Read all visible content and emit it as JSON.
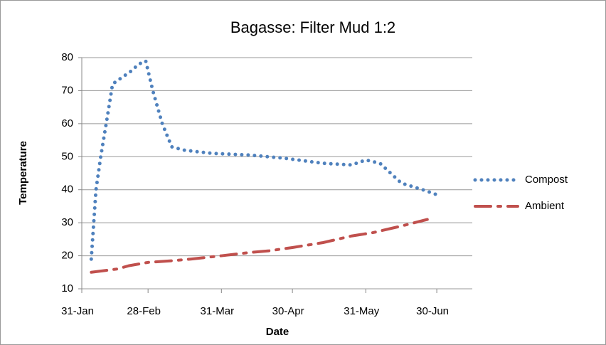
{
  "chart_data": {
    "type": "line",
    "title": "Bagasse: Filter Mud 1:2",
    "xlabel": "Date",
    "ylabel": "Temperature",
    "xlim": [
      "31-Jan",
      "15-Jul"
    ],
    "xticks": [
      "31-Jan",
      "28-Feb",
      "31-Mar",
      "30-Apr",
      "31-May",
      "30-Jun"
    ],
    "ylim": [
      10,
      80
    ],
    "yticks": [
      10,
      20,
      30,
      40,
      50,
      60,
      70,
      80
    ],
    "grid": true,
    "legend": "right",
    "series": [
      {
        "name": "Compost",
        "color": "#4f81bd",
        "style": "dotted",
        "x": [
          "4-Feb",
          "6-Feb",
          "8-Feb",
          "11-Feb",
          "13-Feb",
          "17-Feb",
          "21-Feb",
          "24-Feb",
          "27-Feb",
          "2-Mar",
          "6-Mar",
          "10-Mar",
          "15-Mar",
          "27-Mar",
          "12-Apr",
          "27-Apr",
          "13-May",
          "25-May",
          "31-May",
          "6-Jun",
          "15-Jun",
          "24-Jun",
          "30-Jun"
        ],
        "values": [
          19,
          40,
          50,
          63,
          72,
          74,
          76,
          78,
          79,
          70,
          60,
          53,
          52,
          51,
          50.5,
          49.5,
          48,
          47.5,
          49,
          48,
          42,
          40,
          38.5
        ]
      },
      {
        "name": "Ambient",
        "color": "#c0504d",
        "style": "dashdot",
        "x": [
          "4-Feb",
          "15-Feb",
          "20-Feb",
          "28-Feb",
          "10-Mar",
          "18-Mar",
          "31-Mar",
          "12-Apr",
          "20-Apr",
          "30-Apr",
          "13-May",
          "25-May",
          "3-Jun",
          "15-Jun",
          "26-Jun"
        ],
        "values": [
          15,
          16,
          17,
          18,
          18.5,
          19,
          20,
          21,
          21.5,
          22.5,
          24,
          26,
          27,
          29,
          31
        ]
      }
    ]
  }
}
